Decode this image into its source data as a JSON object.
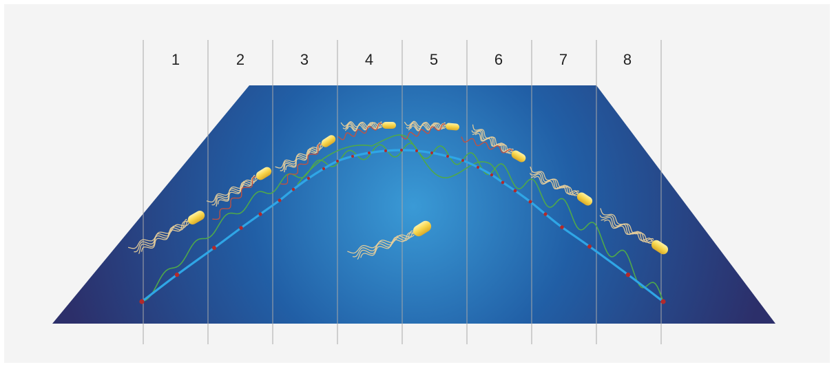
{
  "columns": {
    "labels": [
      "1",
      "2",
      "3",
      "4",
      "5",
      "6",
      "7",
      "8"
    ]
  },
  "colors": {
    "background": "#f4f4f4",
    "plane_center": "#3a9ad6",
    "plane_mid": "#215fa6",
    "plane_edge": "#2c2f6a",
    "divider": "#a8a8a8",
    "track": "#2fa6e6",
    "track_dot": "#b32a2a",
    "green_path": "#4fa84a",
    "bacterium_body": "#f7d54a",
    "flagella_light": "#e8cf9a",
    "flagella_red": "#c8503c"
  },
  "icons": {
    "bacterium": "bacterium-icon"
  }
}
